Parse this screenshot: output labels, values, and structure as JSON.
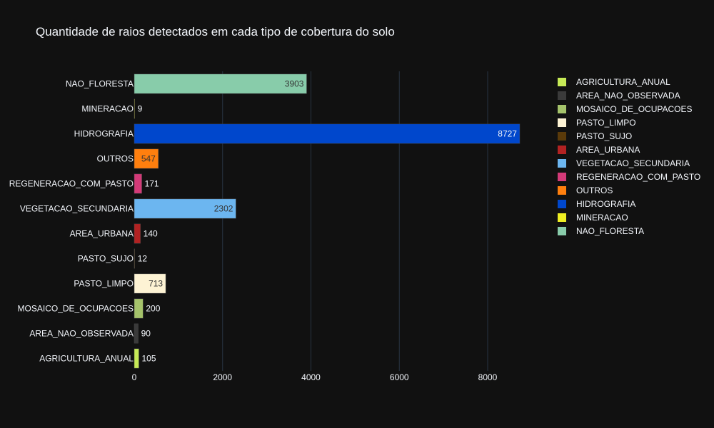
{
  "chart_data": {
    "type": "bar",
    "orientation": "horizontal",
    "title": "Quantidade de raios detectados em cada tipo de cobertura do solo",
    "xlabel": "",
    "ylabel": "",
    "xlim": [
      0,
      8727
    ],
    "xticks": [
      0,
      2000,
      4000,
      6000,
      8000
    ],
    "xtick_labels": [
      "0",
      "2000",
      "4000",
      "6000",
      "8000"
    ],
    "grid": true,
    "legend_position": "right",
    "background": "#111111",
    "series": [
      {
        "name": "AGRICULTURA_ANUAL",
        "category": "AGRICULTURA_ANUAL",
        "value": 105,
        "label": "105",
        "color": "#c6ea56"
      },
      {
        "name": "AREA_NAO_OBSERVADA",
        "category": "AREA_NAO_OBSERVADA",
        "value": 90,
        "label": "90",
        "color": "#3a3a3a"
      },
      {
        "name": "MOSAICO_DE_OCUPACOES",
        "category": "MOSAICO_DE_OCUPACOES",
        "value": 200,
        "label": "200",
        "color": "#a5c36b"
      },
      {
        "name": "PASTO_LIMPO",
        "category": "PASTO_LIMPO",
        "value": 713,
        "label": "713",
        "color": "#fdf3d4"
      },
      {
        "name": "PASTO_SUJO",
        "category": "PASTO_SUJO",
        "value": 12,
        "label": "12",
        "color": "#5a3a0a"
      },
      {
        "name": "AREA_URBANA",
        "category": "AREA_URBANA",
        "value": 140,
        "label": "140",
        "color": "#b22222"
      },
      {
        "name": "VEGETACAO_SECUNDARIA",
        "category": "VEGETACAO_SECUNDARIA",
        "value": 2302,
        "label": "2302",
        "color": "#6cb6f0"
      },
      {
        "name": "REGENERACAO_COM_PASTO",
        "category": "REGENERACAO_COM_PASTO",
        "value": 171,
        "label": "171",
        "color": "#d33a78"
      },
      {
        "name": "OUTROS",
        "category": "OUTROS",
        "value": 547,
        "label": "547",
        "color": "#ff7f0e"
      },
      {
        "name": "HIDROGRAFIA",
        "category": "HIDROGRAFIA",
        "value": 8727,
        "label": "8727",
        "color": "#0047cc"
      },
      {
        "name": "MINERACAO",
        "category": "MINERACAO",
        "value": 9,
        "label": "9",
        "color": "#eeee22"
      },
      {
        "name": "NAO_FLORESTA",
        "category": "NAO_FLORESTA",
        "value": 3903,
        "label": "3903",
        "color": "#88ccaa"
      }
    ]
  }
}
